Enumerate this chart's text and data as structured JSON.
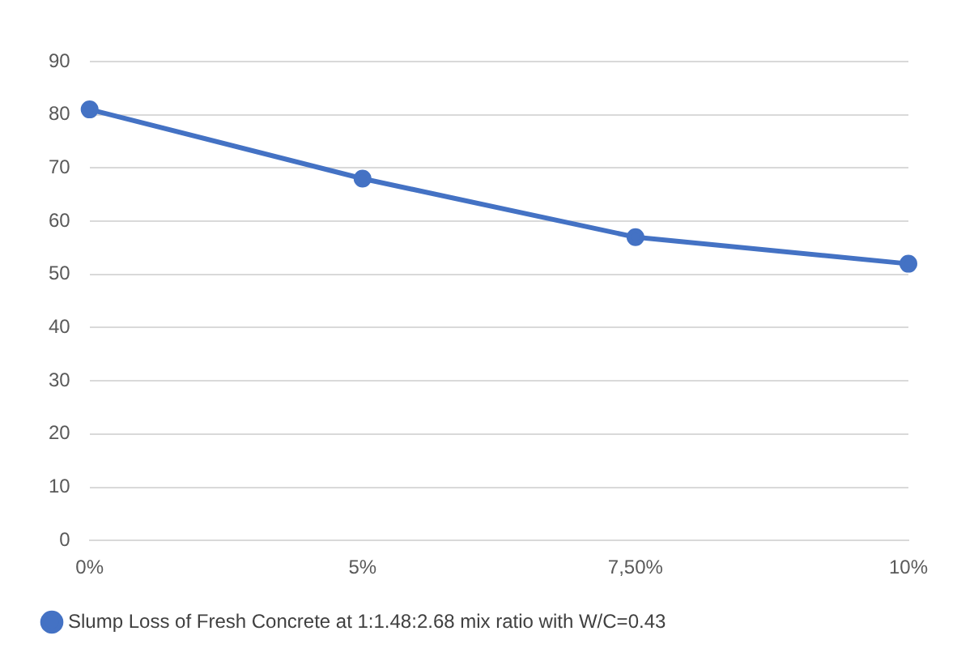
{
  "chart_data": {
    "type": "line",
    "categories": [
      "0%",
      "5%",
      "7,50%",
      "10%"
    ],
    "series": [
      {
        "name": "Slump Loss of Fresh Concrete at 1:1.48:2.68 mix ratio with W/C=0.43",
        "color": "#4472c4",
        "values": [
          81,
          68,
          57,
          52
        ]
      }
    ],
    "ylim": [
      0,
      90
    ],
    "yticks": [
      0,
      10,
      20,
      30,
      40,
      50,
      60,
      70,
      80,
      90
    ],
    "grid": "y",
    "legend": "bottom",
    "marker": "circle",
    "line_style": "solid"
  }
}
